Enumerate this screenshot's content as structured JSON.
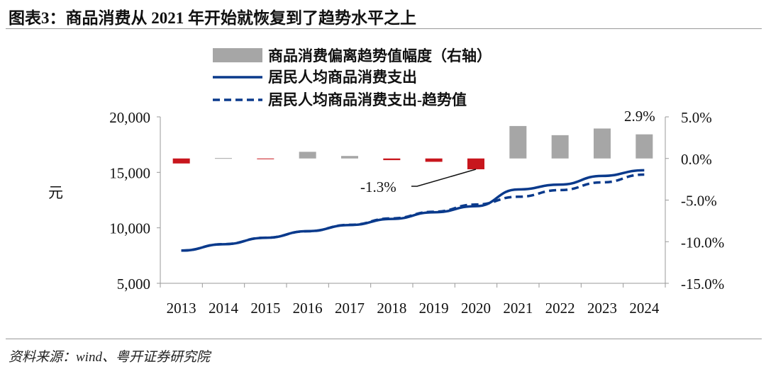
{
  "title": "图表3：商品消费从 2021 年开始就恢复到了趋势水平之上",
  "source": "资料来源：wind、粤开证券研究院",
  "chart_data": {
    "type": "bar+line",
    "categories": [
      "2013",
      "2014",
      "2015",
      "2016",
      "2017",
      "2018",
      "2019",
      "2020",
      "2021",
      "2022",
      "2023",
      "2024"
    ],
    "ylabel_left": "元",
    "ylim_left": [
      5000,
      20000
    ],
    "yticks_left": [
      "5,000",
      "10,000",
      "15,000",
      "20,000"
    ],
    "ylim_right": [
      -15,
      5
    ],
    "yticks_right": [
      "-15.0%",
      "-10.0%",
      "-5.0%",
      "0.0%",
      "5.0%"
    ],
    "legend_position": "top",
    "bars": {
      "name": "商品消费偏离趋势值幅度（右轴）",
      "values": [
        -0.6,
        0.05,
        -0.05,
        0.8,
        0.3,
        -0.2,
        -0.4,
        -1.3,
        3.9,
        2.8,
        3.6,
        2.9
      ],
      "color_positive": "#a6a6a6",
      "color_negative": "#c8161d"
    },
    "series": [
      {
        "name": "居民人均商品消费支出",
        "style": "solid",
        "color": "#0a3a8c",
        "values": [
          7950,
          8520,
          9100,
          9700,
          10250,
          10800,
          11400,
          11950,
          13460,
          13900,
          14680,
          15190
        ]
      },
      {
        "name": "居民人均商品消费支出-趋势值",
        "style": "dashed",
        "color": "#0a3a8c",
        "values": [
          7950,
          8530,
          9110,
          9690,
          10270,
          10850,
          11450,
          12100,
          12800,
          13400,
          14100,
          14800
        ]
      }
    ],
    "annotations": [
      "-1.3%",
      "2.9%"
    ]
  }
}
